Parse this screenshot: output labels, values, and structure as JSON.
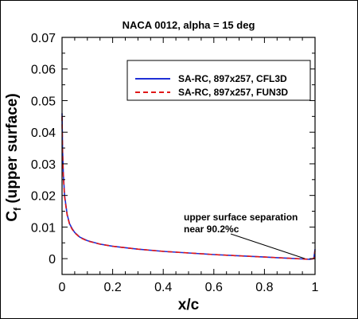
{
  "chart_data": {
    "type": "line",
    "title": "NACA 0012, alpha = 15 deg",
    "xlabel": "x/c",
    "ylabel_main": "C",
    "ylabel_sub": "f",
    "ylabel_rest": " (upper surface)",
    "xlim": [
      0,
      1
    ],
    "ylim": [
      -0.005,
      0.07
    ],
    "x_ticks": [
      "0",
      "0.2",
      "0.4",
      "0.6",
      "0.8",
      "1"
    ],
    "x_tick_values": [
      0,
      0.2,
      0.4,
      0.6,
      0.8,
      1
    ],
    "y_ticks": [
      "0",
      "0.01",
      "0.02",
      "0.03",
      "0.04",
      "0.05",
      "0.06",
      "0.07"
    ],
    "y_tick_values": [
      0,
      0.01,
      0.02,
      0.03,
      0.04,
      0.05,
      0.06,
      0.07
    ],
    "grid": false,
    "legend_position": "top-right",
    "annotation": {
      "lines": [
        "upper surface separation",
        "near 90.2%c"
      ],
      "target": [
        0.96,
        0.0
      ]
    },
    "series": [
      {
        "name": "SA-RC, 897x257, CFL3D",
        "color": "#1f2fd6",
        "style": "solid",
        "x": [
          0,
          0.002,
          0.005,
          0.01,
          0.02,
          0.03,
          0.04,
          0.05,
          0.07,
          0.1,
          0.15,
          0.2,
          0.3,
          0.4,
          0.5,
          0.6,
          0.7,
          0.8,
          0.85,
          0.9,
          0.95,
          0.98,
          0.995,
          1.0
        ],
        "y": [
          0.046,
          0.035,
          0.027,
          0.02,
          0.014,
          0.011,
          0.0095,
          0.0083,
          0.0068,
          0.0057,
          0.0046,
          0.0039,
          0.003,
          0.0023,
          0.0018,
          0.0013,
          0.0009,
          0.0005,
          0.0003,
          0.0001,
          -0.0001,
          -0.0002,
          0.0,
          0.003
        ]
      },
      {
        "name": "SA-RC, 897x257, FUN3D",
        "color": "#e01818",
        "style": "dashed",
        "x": [
          0,
          0.002,
          0.005,
          0.01,
          0.02,
          0.03,
          0.04,
          0.05,
          0.07,
          0.1,
          0.15,
          0.2,
          0.3,
          0.4,
          0.5,
          0.6,
          0.7,
          0.8,
          0.85,
          0.9,
          0.95,
          0.98,
          0.995,
          1.0
        ],
        "y": [
          0.045,
          0.034,
          0.026,
          0.0195,
          0.0138,
          0.0108,
          0.0093,
          0.0082,
          0.0067,
          0.0056,
          0.0046,
          0.0039,
          0.003,
          0.0023,
          0.0018,
          0.0013,
          0.0009,
          0.0005,
          0.0003,
          0.0001,
          -0.0001,
          -0.0002,
          0.0,
          0.0025
        ]
      }
    ]
  }
}
